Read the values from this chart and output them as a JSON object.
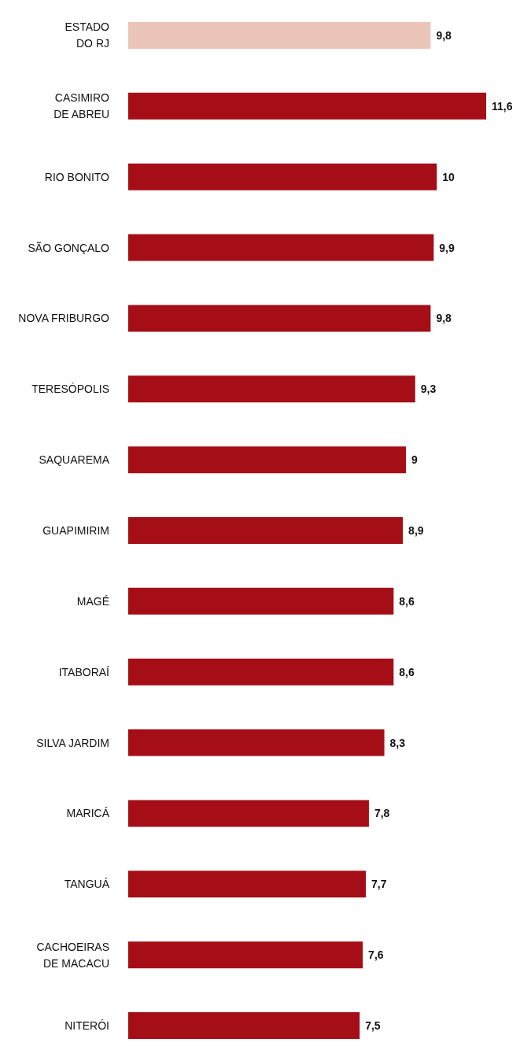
{
  "chart_data": {
    "type": "bar",
    "orientation": "horizontal",
    "categories": [
      "ESTADO\nDO RJ",
      "CASIMIRO\nDE ABREU",
      "RIO BONITO",
      "SÃO GONÇALO",
      "NOVA FRIBURGO",
      "TERESÓPOLIS",
      "SAQUAREMA",
      "GUAPIMIRIM",
      "MAGÉ",
      "ITABORAÍ",
      "SILVA JARDIM",
      "MARICÁ",
      "TANGUÁ",
      "CACHOEIRAS\nDE MACACU",
      "NITERÓI"
    ],
    "values": [
      9.8,
      11.6,
      10,
      9.9,
      9.8,
      9.3,
      9,
      8.9,
      8.6,
      8.6,
      8.3,
      7.8,
      7.7,
      7.6,
      7.5
    ],
    "value_labels": [
      "9,8",
      "11,6",
      "10",
      "9,9",
      "9,8",
      "9,3",
      "9",
      "8,9",
      "8,6",
      "8,6",
      "8,3",
      "7,8",
      "7,7",
      "7,6",
      "7,5"
    ],
    "colors": [
      "#ebc6b8",
      "#a50e17",
      "#a50e17",
      "#a50e17",
      "#a50e17",
      "#a50e17",
      "#a50e17",
      "#a50e17",
      "#a50e17",
      "#a50e17",
      "#a50e17",
      "#a50e17",
      "#a50e17",
      "#a50e17",
      "#a50e17"
    ]
  }
}
